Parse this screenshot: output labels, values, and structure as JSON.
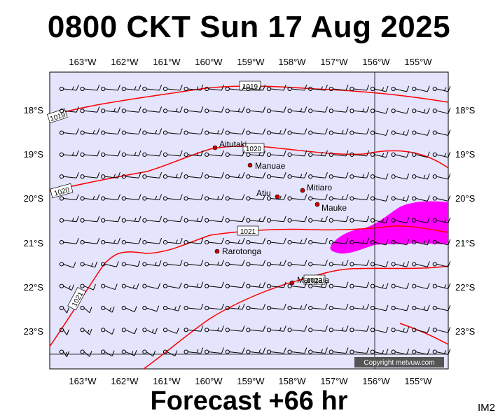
{
  "title": "0800 CKT Sun 17 Aug 2025",
  "footer": "Forecast +66 hr",
  "map_id": "IM2",
  "copyright": "Copyright metvuw.com",
  "lon_labels": [
    "163°W",
    "162°W",
    "161°W",
    "160°W",
    "159°W",
    "158°W",
    "157°W",
    "156°W",
    "155°W"
  ],
  "lat_labels": [
    "18°S",
    "19°S",
    "20°S",
    "21°S",
    "22°S",
    "23°S"
  ],
  "places": [
    {
      "name": "Aitutaki"
    },
    {
      "name": "Manuae"
    },
    {
      "name": "Atiu"
    },
    {
      "name": "Mitiaro"
    },
    {
      "name": "Mauke"
    },
    {
      "name": "Rarotonga"
    },
    {
      "name": "Mangaia"
    }
  ],
  "isobar_labels": [
    "1019",
    "1019",
    "1020",
    "1020",
    "1021",
    "1021",
    "1022"
  ],
  "colors": {
    "ocean": "#e4e4fc",
    "isobar": "#ff0000",
    "rain": "#ff00ff",
    "wind_barb": "#000000",
    "town": "#cc0000"
  }
}
